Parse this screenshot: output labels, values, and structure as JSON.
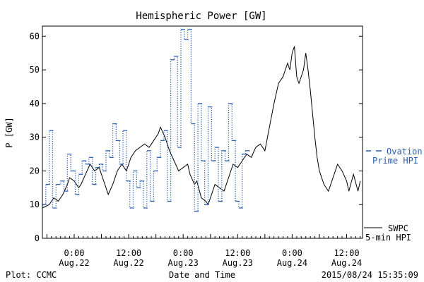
{
  "chart_data": {
    "type": "line",
    "title": "Hemispheric Power [GW]",
    "xlabel": "Date and Time",
    "ylabel": "P [GW]",
    "ylim": [
      0,
      63
    ],
    "yticks": [
      0,
      10,
      20,
      30,
      40,
      50,
      60
    ],
    "xlim": [
      "2015-08-21 17:00",
      "2015-08-24 15:30"
    ],
    "xticks": [
      {
        "t": "2015-08-22 00:00",
        "time": "0:00",
        "date": "Aug.22"
      },
      {
        "t": "2015-08-22 12:00",
        "time": "12:00",
        "date": "Aug.22"
      },
      {
        "t": "2015-08-23 00:00",
        "time": "0:00",
        "date": "Aug.23"
      },
      {
        "t": "2015-08-23 12:00",
        "time": "12:00",
        "date": "Aug.23"
      },
      {
        "t": "2015-08-24 00:00",
        "time": "0:00",
        "date": "Aug.24"
      },
      {
        "t": "2015-08-24 12:00",
        "time": "12:00",
        "date": "Aug.24"
      }
    ],
    "series": [
      {
        "name": "SWPC 5-min HPI",
        "color": "#000000",
        "style": "solid",
        "points": [
          [
            "2015-08-21 17:00",
            9
          ],
          [
            "2015-08-21 18:30",
            10
          ],
          [
            "2015-08-21 19:30",
            12
          ],
          [
            "2015-08-21 20:30",
            11
          ],
          [
            "2015-08-21 21:30",
            13
          ],
          [
            "2015-08-21 22:30",
            16
          ],
          [
            "2015-08-21 23:00",
            18
          ],
          [
            "2015-08-22 00:00",
            17
          ],
          [
            "2015-08-22 01:00",
            15
          ],
          [
            "2015-08-22 01:30",
            16
          ],
          [
            "2015-08-22 02:30",
            19
          ],
          [
            "2015-08-22 03:30",
            22
          ],
          [
            "2015-08-22 04:30",
            20
          ],
          [
            "2015-08-22 05:30",
            21
          ],
          [
            "2015-08-22 06:30",
            17
          ],
          [
            "2015-08-22 07:30",
            13
          ],
          [
            "2015-08-22 08:30",
            16
          ],
          [
            "2015-08-22 09:30",
            20
          ],
          [
            "2015-08-22 10:30",
            22
          ],
          [
            "2015-08-22 11:30",
            20
          ],
          [
            "2015-08-22 12:30",
            24
          ],
          [
            "2015-08-22 13:30",
            26
          ],
          [
            "2015-08-22 14:30",
            27
          ],
          [
            "2015-08-22 15:30",
            28
          ],
          [
            "2015-08-22 16:30",
            27
          ],
          [
            "2015-08-22 17:30",
            29
          ],
          [
            "2015-08-22 18:30",
            31
          ],
          [
            "2015-08-22 19:00",
            33
          ],
          [
            "2015-08-22 20:00",
            30
          ],
          [
            "2015-08-22 21:00",
            26
          ],
          [
            "2015-08-22 22:00",
            23
          ],
          [
            "2015-08-22 23:00",
            20
          ],
          [
            "2015-08-23 00:00",
            21
          ],
          [
            "2015-08-23 01:00",
            22
          ],
          [
            "2015-08-23 01:30",
            19
          ],
          [
            "2015-08-23 02:30",
            16
          ],
          [
            "2015-08-23 03:00",
            17
          ],
          [
            "2015-08-23 04:00",
            12
          ],
          [
            "2015-08-23 05:00",
            11
          ],
          [
            "2015-08-23 05:30",
            10
          ],
          [
            "2015-08-23 06:30",
            14
          ],
          [
            "2015-08-23 07:00",
            16
          ],
          [
            "2015-08-23 08:00",
            15
          ],
          [
            "2015-08-23 09:00",
            14
          ],
          [
            "2015-08-23 10:00",
            18
          ],
          [
            "2015-08-23 11:00",
            22
          ],
          [
            "2015-08-23 12:00",
            21
          ],
          [
            "2015-08-23 13:00",
            23
          ],
          [
            "2015-08-23 14:00",
            25
          ],
          [
            "2015-08-23 15:00",
            24
          ],
          [
            "2015-08-23 16:00",
            27
          ],
          [
            "2015-08-23 17:00",
            28
          ],
          [
            "2015-08-23 18:00",
            26
          ],
          [
            "2015-08-23 19:00",
            33
          ],
          [
            "2015-08-23 20:00",
            40
          ],
          [
            "2015-08-23 21:00",
            46
          ],
          [
            "2015-08-23 22:00",
            48
          ],
          [
            "2015-08-23 23:00",
            52
          ],
          [
            "2015-08-23 23:30",
            50
          ],
          [
            "2015-08-24 00:00",
            55
          ],
          [
            "2015-08-24 00:30",
            57
          ],
          [
            "2015-08-24 01:00",
            48
          ],
          [
            "2015-08-24 01:30",
            46
          ],
          [
            "2015-08-24 02:30",
            50
          ],
          [
            "2015-08-24 03:00",
            55
          ],
          [
            "2015-08-24 03:30",
            50
          ],
          [
            "2015-08-24 04:00",
            44
          ],
          [
            "2015-08-24 04:30",
            37
          ],
          [
            "2015-08-24 05:00",
            30
          ],
          [
            "2015-08-24 05:30",
            24
          ],
          [
            "2015-08-24 06:00",
            20
          ],
          [
            "2015-08-24 07:00",
            16
          ],
          [
            "2015-08-24 08:00",
            14
          ],
          [
            "2015-08-24 09:00",
            18
          ],
          [
            "2015-08-24 10:00",
            22
          ],
          [
            "2015-08-24 11:00",
            20
          ],
          [
            "2015-08-24 12:00",
            17
          ],
          [
            "2015-08-24 12:30",
            14
          ],
          [
            "2015-08-24 13:30",
            19
          ],
          [
            "2015-08-24 14:30",
            14
          ],
          [
            "2015-08-24 15:00",
            17
          ]
        ]
      },
      {
        "name": "Ovation Prime HPI",
        "color": "#2a5fb0",
        "style": "dotted-step",
        "points": [
          [
            "2015-08-21 17:00",
            10
          ],
          [
            "2015-08-21 17:45",
            16
          ],
          [
            "2015-08-21 18:30",
            32
          ],
          [
            "2015-08-21 19:15",
            9
          ],
          [
            "2015-08-21 20:00",
            16
          ],
          [
            "2015-08-21 21:00",
            17
          ],
          [
            "2015-08-21 21:45",
            14
          ],
          [
            "2015-08-21 22:30",
            25
          ],
          [
            "2015-08-21 23:15",
            20
          ],
          [
            "2015-08-22 00:15",
            13
          ],
          [
            "2015-08-22 01:00",
            19
          ],
          [
            "2015-08-22 01:45",
            23
          ],
          [
            "2015-08-22 02:30",
            22
          ],
          [
            "2015-08-22 03:15",
            24
          ],
          [
            "2015-08-22 04:00",
            16
          ],
          [
            "2015-08-22 04:45",
            21
          ],
          [
            "2015-08-22 05:30",
            22
          ],
          [
            "2015-08-22 06:15",
            20
          ],
          [
            "2015-08-22 07:00",
            26
          ],
          [
            "2015-08-22 07:45",
            24
          ],
          [
            "2015-08-22 08:30",
            34
          ],
          [
            "2015-08-22 09:15",
            29
          ],
          [
            "2015-08-22 10:00",
            22
          ],
          [
            "2015-08-22 10:45",
            32
          ],
          [
            "2015-08-22 11:30",
            17
          ],
          [
            "2015-08-22 12:15",
            9
          ],
          [
            "2015-08-22 13:00",
            20
          ],
          [
            "2015-08-22 13:45",
            15
          ],
          [
            "2015-08-22 14:30",
            17
          ],
          [
            "2015-08-22 15:15",
            9
          ],
          [
            "2015-08-22 16:00",
            26
          ],
          [
            "2015-08-22 16:45",
            11
          ],
          [
            "2015-08-22 17:30",
            20
          ],
          [
            "2015-08-22 18:15",
            24
          ],
          [
            "2015-08-22 19:00",
            29
          ],
          [
            "2015-08-22 19:45",
            32
          ],
          [
            "2015-08-22 20:30",
            11
          ],
          [
            "2015-08-22 21:15",
            53
          ],
          [
            "2015-08-22 22:00",
            54
          ],
          [
            "2015-08-22 22:45",
            27
          ],
          [
            "2015-08-22 23:30",
            62
          ],
          [
            "2015-08-23 00:15",
            59
          ],
          [
            "2015-08-23 01:00",
            62
          ],
          [
            "2015-08-23 01:45",
            34
          ],
          [
            "2015-08-23 02:30",
            8
          ],
          [
            "2015-08-23 03:15",
            40
          ],
          [
            "2015-08-23 04:00",
            23
          ],
          [
            "2015-08-23 04:45",
            10
          ],
          [
            "2015-08-23 05:30",
            39
          ],
          [
            "2015-08-23 06:15",
            23
          ],
          [
            "2015-08-23 07:00",
            27
          ],
          [
            "2015-08-23 07:45",
            11
          ],
          [
            "2015-08-23 08:30",
            26
          ],
          [
            "2015-08-23 09:15",
            23
          ],
          [
            "2015-08-23 10:00",
            40
          ],
          [
            "2015-08-23 10:45",
            29
          ],
          [
            "2015-08-23 11:30",
            11
          ],
          [
            "2015-08-23 12:15",
            9
          ],
          [
            "2015-08-23 13:00",
            25
          ],
          [
            "2015-08-23 13:45",
            26
          ]
        ]
      }
    ],
    "legend": [
      {
        "label_line1": "Ovation",
        "label_line2": "Prime HPI",
        "color": "#2a5fb0"
      },
      {
        "label_line1": "SWPC",
        "label_line2": "5-min HPI",
        "color": "#000000"
      }
    ]
  },
  "footer": {
    "left": "Plot: CCMC",
    "center": "Date and Time",
    "right": "2015/08/24 15:35:09"
  }
}
